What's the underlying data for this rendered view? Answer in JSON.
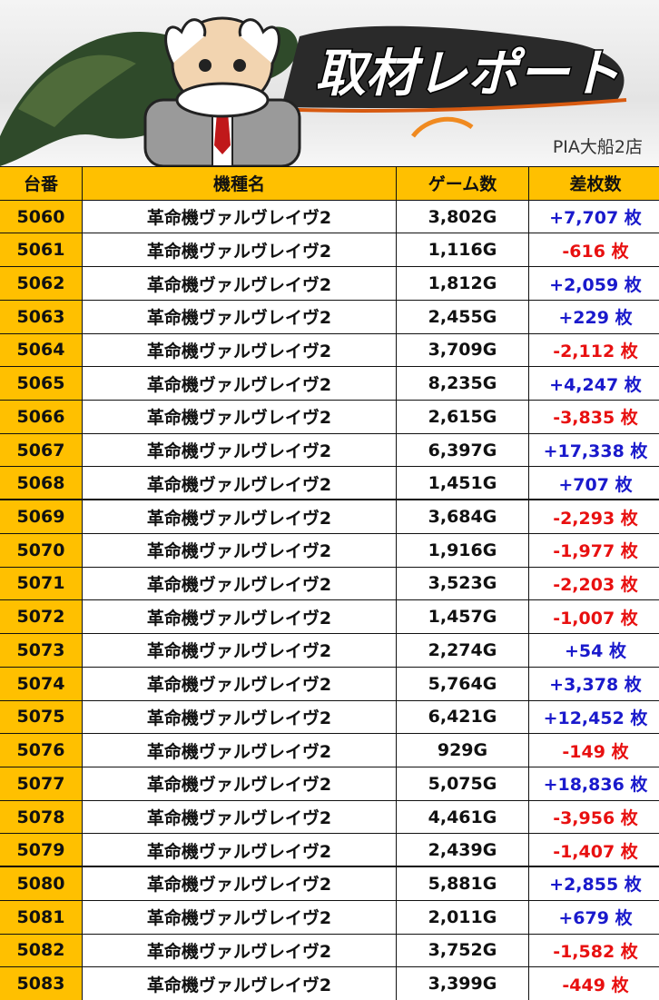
{
  "header": {
    "title": "取材レポート",
    "store": "PIA大船2店"
  },
  "table": {
    "columns": [
      "台番",
      "機種名",
      "ゲーム数",
      "差枚数"
    ],
    "rows": [
      [
        "5060",
        "革命機ヴァルヴレイヴ2",
        "3,802G",
        "+7,707 枚"
      ],
      [
        "5061",
        "革命機ヴァルヴレイヴ2",
        "1,116G",
        "-616 枚"
      ],
      [
        "5062",
        "革命機ヴァルヴレイヴ2",
        "1,812G",
        "+2,059 枚"
      ],
      [
        "5063",
        "革命機ヴァルヴレイヴ2",
        "2,455G",
        "+229 枚"
      ],
      [
        "5064",
        "革命機ヴァルヴレイヴ2",
        "3,709G",
        "-2,112 枚"
      ],
      [
        "5065",
        "革命機ヴァルヴレイヴ2",
        "8,235G",
        "+4,247 枚"
      ],
      [
        "5066",
        "革命機ヴァルヴレイヴ2",
        "2,615G",
        "-3,835 枚"
      ],
      [
        "5067",
        "革命機ヴァルヴレイヴ2",
        "6,397G",
        "+17,338 枚"
      ],
      [
        "5068",
        "革命機ヴァルヴレイヴ2",
        "1,451G",
        "+707 枚"
      ],
      [
        "5069",
        "革命機ヴァルヴレイヴ2",
        "3,684G",
        "-2,293 枚"
      ],
      [
        "5070",
        "革命機ヴァルヴレイヴ2",
        "1,916G",
        "-1,977 枚"
      ],
      [
        "5071",
        "革命機ヴァルヴレイヴ2",
        "3,523G",
        "-2,203 枚"
      ],
      [
        "5072",
        "革命機ヴァルヴレイヴ2",
        "1,457G",
        "-1,007 枚"
      ],
      [
        "5073",
        "革命機ヴァルヴレイヴ2",
        "2,274G",
        "+54 枚"
      ],
      [
        "5074",
        "革命機ヴァルヴレイヴ2",
        "5,764G",
        "+3,378 枚"
      ],
      [
        "5075",
        "革命機ヴァルヴレイヴ2",
        "6,421G",
        "+12,452 枚"
      ],
      [
        "5076",
        "革命機ヴァルヴレイヴ2",
        "929G",
        "-149 枚"
      ],
      [
        "5077",
        "革命機ヴァルヴレイヴ2",
        "5,075G",
        "+18,836 枚"
      ],
      [
        "5078",
        "革命機ヴァルヴレイヴ2",
        "4,461G",
        "-3,956 枚"
      ],
      [
        "5079",
        "革命機ヴァルヴレイヴ2",
        "2,439G",
        "-1,407 枚"
      ],
      [
        "5080",
        "革命機ヴァルヴレイヴ2",
        "5,881G",
        "+2,855 枚"
      ],
      [
        "5081",
        "革命機ヴァルヴレイヴ2",
        "2,011G",
        "+679 枚"
      ],
      [
        "5082",
        "革命機ヴァルヴレイヴ2",
        "3,752G",
        "-1,582 枚"
      ],
      [
        "5083",
        "革命機ヴァルヴレイヴ2",
        "3,399G",
        "-449 枚"
      ]
    ]
  }
}
